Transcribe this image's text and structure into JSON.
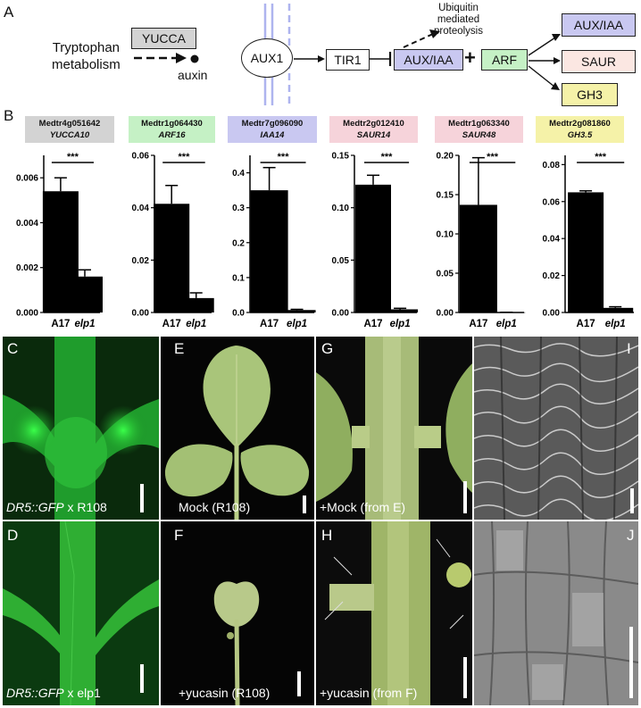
{
  "panel_labels": {
    "a": "A",
    "b": "B",
    "c": "C",
    "d": "D",
    "e": "E",
    "f": "F",
    "g": "G",
    "h": "H",
    "i": "I",
    "j": "J"
  },
  "pathway": {
    "tryptophan": "Tryptophan\nmetabolism",
    "yucca": "YUCCA",
    "auxin": "auxin",
    "aux1": "AUX1",
    "tir1": "TIR1",
    "aux_iaa": "AUX/IAA",
    "plus": "+",
    "arf": "ARF",
    "ubiquitin": "Ubiquitin\nmediated\nproteolysis",
    "out_aux_iaa": "AUX/IAA",
    "out_saur": "SAUR",
    "out_gh3": "GH3"
  },
  "colors": {
    "gray_box": "#d3d3d3",
    "green_box": "#c5f1c5",
    "purple_box": "#c9c8f1",
    "pink_box": "#f6d3da",
    "salmon_box": "#fbe7e2",
    "yellow_box": "#f5f2a8",
    "membrane": "#aeb4ef",
    "bar": "#000000"
  },
  "chart_data": [
    {
      "type": "bar",
      "gene_id": "Medtr4g051642",
      "gene_symbol": "YUCCA10",
      "categories": [
        "A17",
        "elp1"
      ],
      "values": [
        0.0054,
        0.0016
      ],
      "errors": [
        0.0006,
        0.0003
      ],
      "ylim": [
        0,
        0.007
      ],
      "yticks": [
        "0.000",
        "0.002",
        "0.004",
        "0.006"
      ],
      "significance": "***"
    },
    {
      "type": "bar",
      "gene_id": "Medtr1g064430",
      "gene_symbol": "ARF16",
      "categories": [
        "A17",
        "elp1"
      ],
      "values": [
        0.0415,
        0.0055
      ],
      "errors": [
        0.007,
        0.002
      ],
      "ylim": [
        0,
        0.06
      ],
      "yticks": [
        "0.00",
        "0.02",
        "0.04",
        "0.06"
      ],
      "significance": "***"
    },
    {
      "type": "bar",
      "gene_id": "Medtr7g096090",
      "gene_symbol": "IAA14",
      "categories": [
        "A17",
        "elp1"
      ],
      "values": [
        0.35,
        0.007
      ],
      "errors": [
        0.065,
        0.002
      ],
      "ylim": [
        0,
        0.45
      ],
      "yticks": [
        "0.0",
        "0.1",
        "0.2",
        "0.3",
        "0.4"
      ],
      "significance": "***"
    },
    {
      "type": "bar",
      "gene_id": "Medtr2g012410",
      "gene_symbol": "SAUR14",
      "categories": [
        "A17",
        "elp1"
      ],
      "values": [
        0.122,
        0.003
      ],
      "errors": [
        0.009,
        0.001
      ],
      "ylim": [
        0,
        0.15
      ],
      "yticks": [
        "0.00",
        "0.05",
        "0.10",
        "0.15"
      ],
      "significance": "***"
    },
    {
      "type": "bar",
      "gene_id": "Medtr1g063340",
      "gene_symbol": "SAUR48",
      "categories": [
        "A17",
        "elp1"
      ],
      "values": [
        0.137,
        0.0002
      ],
      "errors": [
        0.06,
        0.0001
      ],
      "ylim": [
        0,
        0.2
      ],
      "yticks": [
        "0.00",
        "0.05",
        "0.10",
        "0.15",
        "0.20"
      ],
      "significance": "***"
    },
    {
      "type": "bar",
      "gene_id": "Medtr2g081860",
      "gene_symbol": "GH3.5",
      "categories": [
        "A17",
        "elp1"
      ],
      "values": [
        0.065,
        0.0025
      ],
      "errors": [
        0.0008,
        0.0006
      ],
      "ylim": [
        0,
        0.085
      ],
      "yticks": [
        "0.00",
        "0.02",
        "0.04",
        "0.06",
        "0.08"
      ],
      "significance": "***"
    }
  ],
  "photos": {
    "c": {
      "caption_prefix": "DR5::GFP",
      "caption_suffix": " x R108"
    },
    "d": {
      "caption_prefix": "DR5::GFP",
      "caption_suffix": " x elp1"
    },
    "e": {
      "caption": "Mock (R108)"
    },
    "f": {
      "caption": "+yucasin (R108)"
    },
    "g": {
      "caption": "+Mock (from E)"
    },
    "h": {
      "caption": "+yucasin (from F)"
    }
  }
}
